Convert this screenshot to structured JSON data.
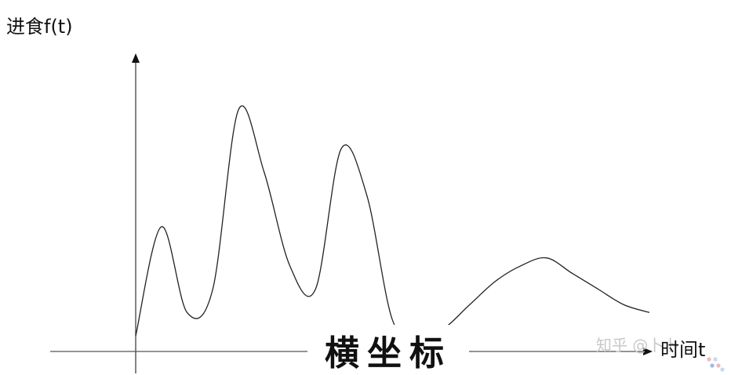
{
  "chart_data": {
    "type": "line",
    "ylabel": "进食f(t)",
    "xlabel": "时间t",
    "subtitle": "横坐标",
    "grid": false,
    "series": [
      {
        "x": [
          0,
          0.5,
          1,
          1.5,
          2,
          2.5,
          3,
          3.5,
          4,
          4.5,
          5,
          5.5,
          6,
          6.5,
          7,
          7.5,
          8,
          8.5,
          9,
          9.5,
          10
        ],
        "values": [
          0.2,
          1.6,
          0.5,
          0.8,
          3.1,
          2.3,
          1.1,
          0.8,
          2.6,
          2.0,
          0.4,
          0.2,
          0.3,
          0.6,
          0.9,
          1.1,
          1.2,
          1.0,
          0.8,
          0.6,
          0.5
        ]
      }
    ]
  },
  "watermark": "知乎 @卜卜",
  "logo_dots_colors": [
    "#f1b8be",
    "#c9d8f0",
    "#9fb8e6"
  ]
}
